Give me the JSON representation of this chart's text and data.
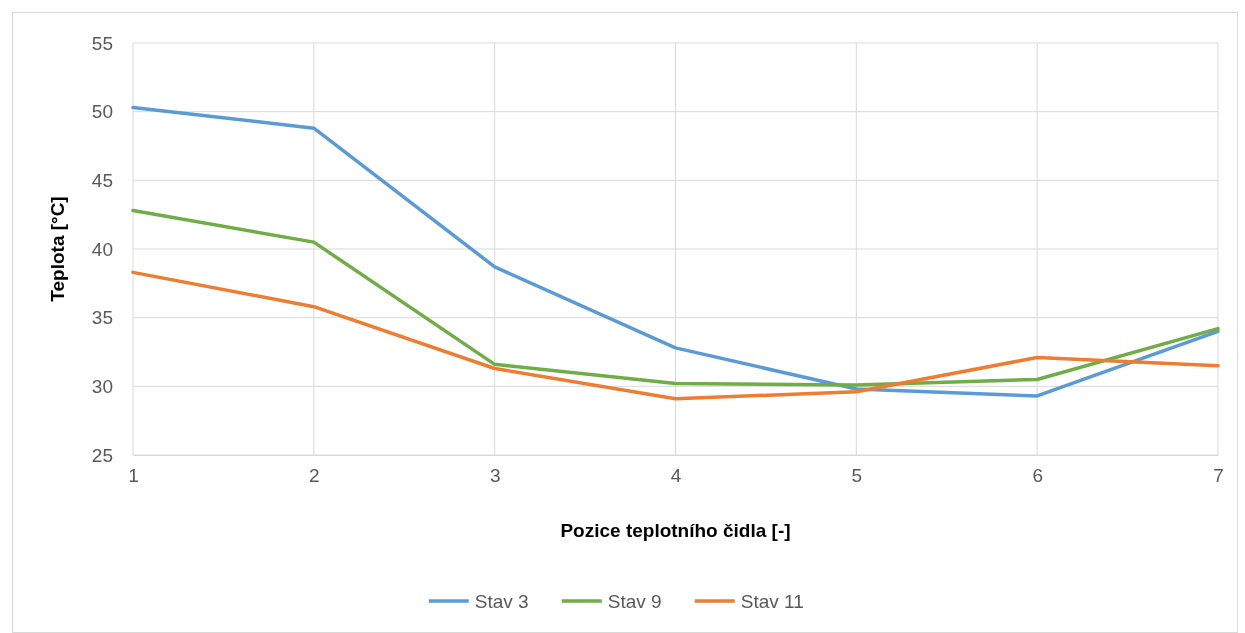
{
  "chart_data": {
    "type": "line",
    "xlabel": "Pozice teplotního čidla [-]",
    "ylabel": "Teplota [°C]",
    "x": [
      1,
      2,
      3,
      4,
      5,
      6,
      7
    ],
    "xlim": [
      1,
      7
    ],
    "xticks": [
      1,
      2,
      3,
      4,
      5,
      6,
      7
    ],
    "ylim": [
      25,
      55
    ],
    "yticks": [
      25,
      30,
      35,
      40,
      45,
      50,
      55
    ],
    "grid": true,
    "legend": "bottom",
    "marker": "none",
    "line_style": "solid",
    "series": [
      {
        "name": "Stav 3",
        "color": "#5b9bd5",
        "values": [
          50.3,
          48.8,
          38.7,
          32.8,
          29.8,
          29.3,
          34.0
        ]
      },
      {
        "name": "Stav 9",
        "color": "#70ad47",
        "values": [
          42.8,
          40.5,
          31.6,
          30.2,
          30.1,
          30.5,
          34.2
        ]
      },
      {
        "name": "Stav 11",
        "color": "#ed7d31",
        "values": [
          38.3,
          35.8,
          31.3,
          29.1,
          29.6,
          32.1,
          31.5
        ]
      }
    ]
  }
}
